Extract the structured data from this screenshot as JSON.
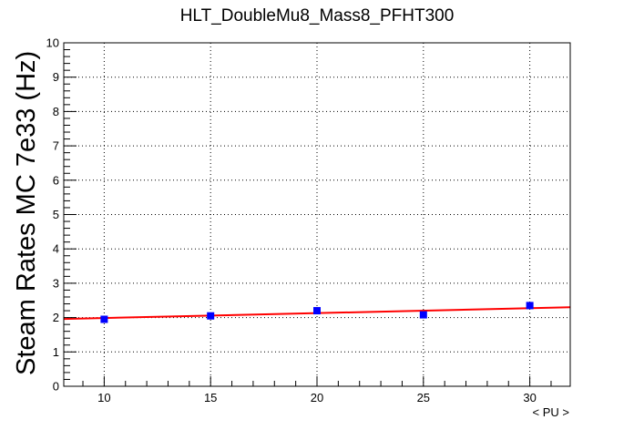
{
  "chart_data": {
    "type": "scatter",
    "title": "HLT_DoubleMu8_Mass8_PFHT300",
    "xlabel": "< PU >",
    "ylabel": "Steam Rates MC 7e33 (Hz)",
    "xlim": [
      8.1,
      31.9
    ],
    "ylim": [
      0,
      10
    ],
    "x_ticks": [
      10,
      15,
      20,
      25,
      30
    ],
    "y_ticks": [
      0,
      1,
      2,
      3,
      4,
      5,
      6,
      7,
      8,
      9,
      10
    ],
    "grid": true,
    "series": [
      {
        "color": "#0000ff",
        "marker": "square",
        "points": [
          {
            "x": 10,
            "y": 1.95
          },
          {
            "x": 15,
            "y": 2.05
          },
          {
            "x": 20,
            "y": 2.2
          },
          {
            "x": 25,
            "y": 2.08
          },
          {
            "x": 30,
            "y": 2.35
          }
        ]
      }
    ],
    "fit": {
      "color": "#ff0000",
      "type": "linear",
      "points": [
        {
          "x": 8.1,
          "y": 1.96
        },
        {
          "x": 31.9,
          "y": 2.3
        }
      ]
    }
  }
}
